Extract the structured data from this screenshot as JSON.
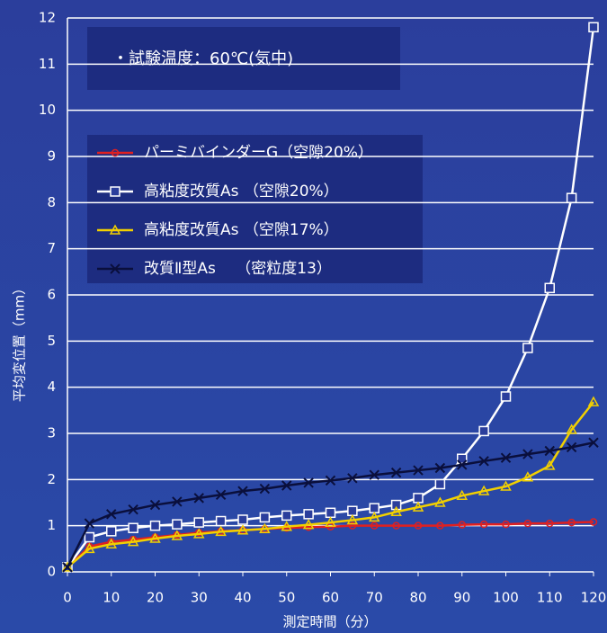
{
  "chart_data": {
    "type": "line",
    "annotation": "・試験温度：60℃(気中)",
    "x_label": "測定時間（分）",
    "y_label": "平均変位置（mm）",
    "x": [
      0,
      5,
      10,
      15,
      20,
      25,
      30,
      35,
      40,
      45,
      50,
      55,
      60,
      65,
      70,
      75,
      80,
      85,
      90,
      95,
      100,
      105,
      110,
      115,
      120
    ],
    "series": [
      {
        "name": "パーミバインダーG（空隙20%）",
        "color": "#e02020",
        "marker": "circle",
        "values": [
          0.1,
          0.55,
          0.65,
          0.7,
          0.75,
          0.8,
          0.85,
          0.88,
          0.9,
          0.93,
          0.95,
          0.97,
          0.98,
          1.0,
          1.0,
          1.0,
          1.0,
          1.0,
          1.02,
          1.03,
          1.03,
          1.05,
          1.05,
          1.07,
          1.08
        ]
      },
      {
        "name": "高粘度改質As （空隙20%）",
        "color": "#ffffff",
        "marker": "square",
        "values": [
          0.1,
          0.75,
          0.88,
          0.95,
          1.0,
          1.03,
          1.07,
          1.1,
          1.13,
          1.18,
          1.22,
          1.25,
          1.28,
          1.32,
          1.38,
          1.45,
          1.6,
          1.9,
          2.45,
          3.05,
          3.8,
          4.85,
          6.15,
          8.1,
          11.8
        ]
      },
      {
        "name": "高粘度改質As （空隙17%）",
        "color": "#f2d000",
        "marker": "triangle",
        "values": [
          0.1,
          0.5,
          0.6,
          0.65,
          0.72,
          0.78,
          0.82,
          0.87,
          0.9,
          0.93,
          0.98,
          1.02,
          1.07,
          1.12,
          1.18,
          1.3,
          1.4,
          1.5,
          1.65,
          1.75,
          1.85,
          2.05,
          2.3,
          3.08,
          3.68
        ]
      },
      {
        "name": "改質Ⅱ型As　 （密粒度13）",
        "color": "#0a0f3c",
        "marker": "x",
        "values": [
          0.1,
          1.05,
          1.25,
          1.35,
          1.45,
          1.52,
          1.6,
          1.67,
          1.75,
          1.8,
          1.87,
          1.93,
          1.98,
          2.03,
          2.1,
          2.15,
          2.2,
          2.25,
          2.32,
          2.4,
          2.47,
          2.55,
          2.62,
          2.7,
          2.8
        ]
      }
    ],
    "xlim": [
      0,
      120
    ],
    "xticks": [
      0,
      10,
      20,
      30,
      40,
      50,
      60,
      70,
      80,
      90,
      100,
      110,
      120
    ],
    "ylim": [
      0,
      12
    ],
    "yticks": [
      0,
      1,
      2,
      3,
      4,
      5,
      6,
      7,
      8,
      9,
      10,
      11,
      12
    ],
    "grid": true
  }
}
